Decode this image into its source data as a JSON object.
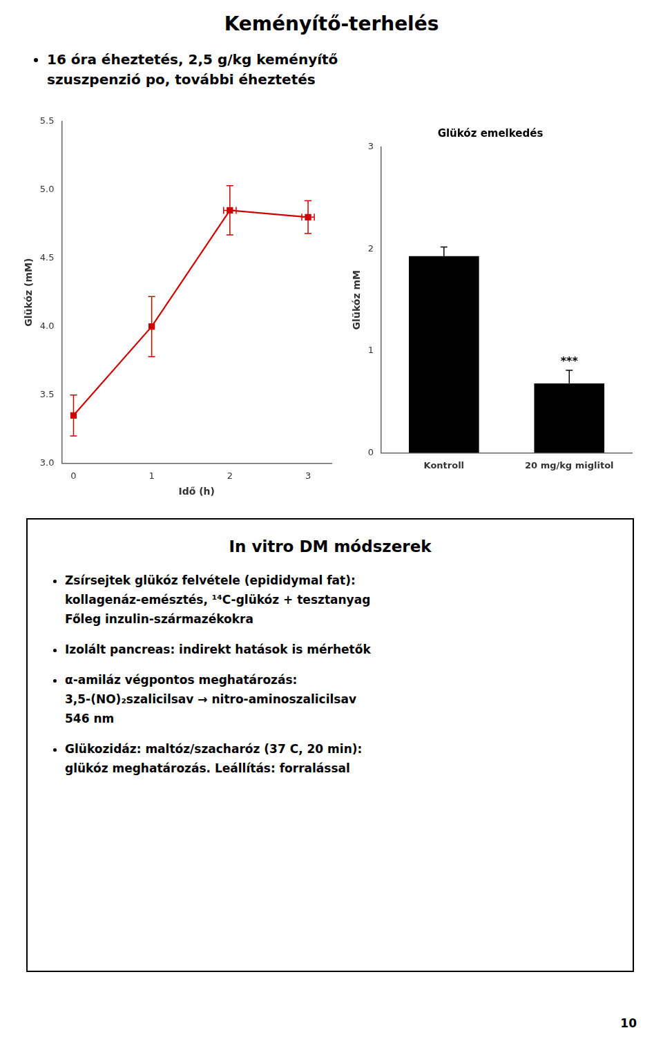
{
  "title": "Keményítő-terhelés",
  "annotations": [
    "16 óra éheztetés, 2,5 g/kg keményítő",
    "szuszpenzió po, további éheztetés"
  ],
  "box": {
    "title": "In vitro DM módszerek",
    "bullets": [
      [
        "Zsírsejtek glükóz felvétele (epididymal fat):",
        "kollagenáz-emésztés, ¹⁴C-glükóz + tesztanyag",
        "Főleg inzulin-származékokra"
      ],
      [
        "Izolált pancreas: indirekt hatások is mérhetők"
      ],
      [
        "α-amiláz végpontos meghatározás:",
        "3,5-(NO)₂szalicilsav → nitro-aminoszalicilsav",
        "546 nm"
      ],
      [
        "Glükozidáz: maltóz/szacharóz (37 C, 20 min):",
        "glükóz meghatározás. Leállítás: forralással"
      ]
    ]
  },
  "page_number": "10",
  "chart_data": [
    {
      "type": "line",
      "x": [
        0,
        1,
        2,
        3
      ],
      "values": [
        3.35,
        4.0,
        4.85,
        4.8
      ],
      "errors": [
        0.15,
        0.22,
        0.18,
        0.12
      ],
      "x_errors": [
        0,
        0,
        0.08,
        0.08
      ],
      "color": "#cc0000",
      "marker": "square",
      "xlabel": "Idő (h)",
      "ylabel": "Glükóz (mM)",
      "xlim": [
        -0.15,
        3.3
      ],
      "ylim": [
        3.0,
        5.5
      ],
      "xticks": [
        0,
        1,
        2,
        3
      ],
      "yticks": [
        {
          "value": 3,
          "label": "3.0"
        },
        3.5,
        {
          "value": 4,
          "label": "4.0"
        },
        4.5,
        {
          "value": 5,
          "label": "5.0"
        },
        5.5
      ],
      "grid": false
    },
    {
      "type": "bar",
      "title": "Glükóz emelkedés",
      "categories": [
        "Kontroll",
        "20 mg/kg miglitol"
      ],
      "values": [
        1.93,
        0.68
      ],
      "errors": [
        0.09,
        0.13
      ],
      "color": "#000000",
      "ylabel": "Glükóz mM",
      "ylim": [
        0,
        3
      ],
      "yticks": [
        0,
        1,
        2,
        3
      ],
      "grid": false,
      "annotations": [
        {
          "text": "***",
          "category": "20 mg/kg miglitol"
        }
      ]
    }
  ]
}
